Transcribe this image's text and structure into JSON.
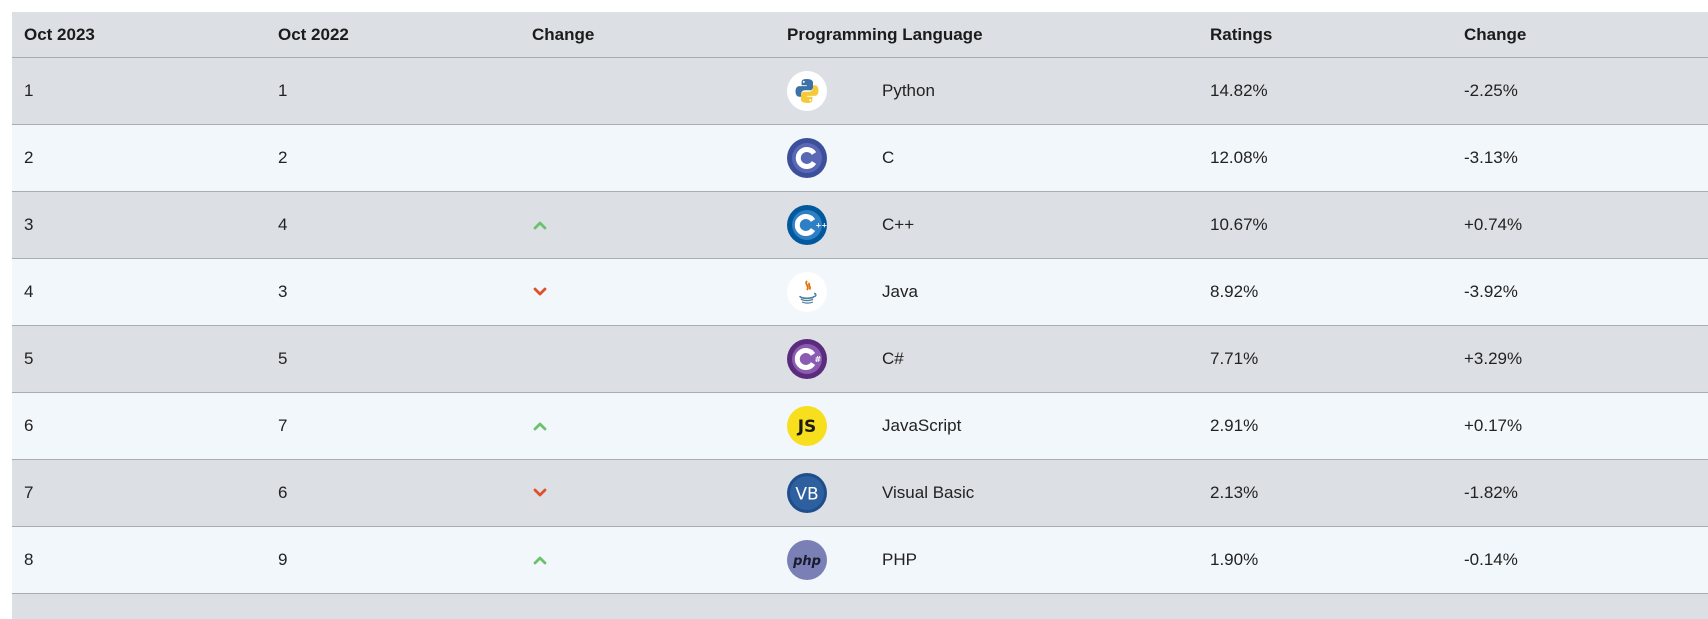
{
  "headers": {
    "col1": "Oct 2023",
    "col2": "Oct 2022",
    "col3": "Change",
    "col4": "Programming Language",
    "col5": "Ratings",
    "col6": "Change"
  },
  "rows": [
    {
      "rank_2023": "1",
      "rank_2022": "1",
      "trend": "none",
      "icon": "python-icon",
      "language": "Python",
      "rating": "14.82%",
      "change": "-2.25%"
    },
    {
      "rank_2023": "2",
      "rank_2022": "2",
      "trend": "none",
      "icon": "c-icon",
      "language": "C",
      "rating": "12.08%",
      "change": "-3.13%"
    },
    {
      "rank_2023": "3",
      "rank_2022": "4",
      "trend": "up",
      "icon": "cpp-icon",
      "language": "C++",
      "rating": "10.67%",
      "change": "+0.74%"
    },
    {
      "rank_2023": "4",
      "rank_2022": "3",
      "trend": "down",
      "icon": "java-icon",
      "language": "Java",
      "rating": "8.92%",
      "change": "-3.92%"
    },
    {
      "rank_2023": "5",
      "rank_2022": "5",
      "trend": "none",
      "icon": "csharp-icon",
      "language": "C#",
      "rating": "7.71%",
      "change": "+3.29%"
    },
    {
      "rank_2023": "6",
      "rank_2022": "7",
      "trend": "up",
      "icon": "javascript-icon",
      "language": "JavaScript",
      "rating": "2.91%",
      "change": "+0.17%"
    },
    {
      "rank_2023": "7",
      "rank_2022": "6",
      "trend": "down",
      "icon": "visual-basic-icon",
      "language": "Visual Basic",
      "rating": "2.13%",
      "change": "-1.82%"
    },
    {
      "rank_2023": "8",
      "rank_2022": "9",
      "trend": "up",
      "icon": "php-icon",
      "language": "PHP",
      "rating": "1.90%",
      "change": "-0.14%"
    }
  ],
  "colors": {
    "row_dark": "#dce0e4",
    "row_light": "#f2f7fb",
    "trend_up": "#6cc26c",
    "trend_down": "#e0502a"
  }
}
